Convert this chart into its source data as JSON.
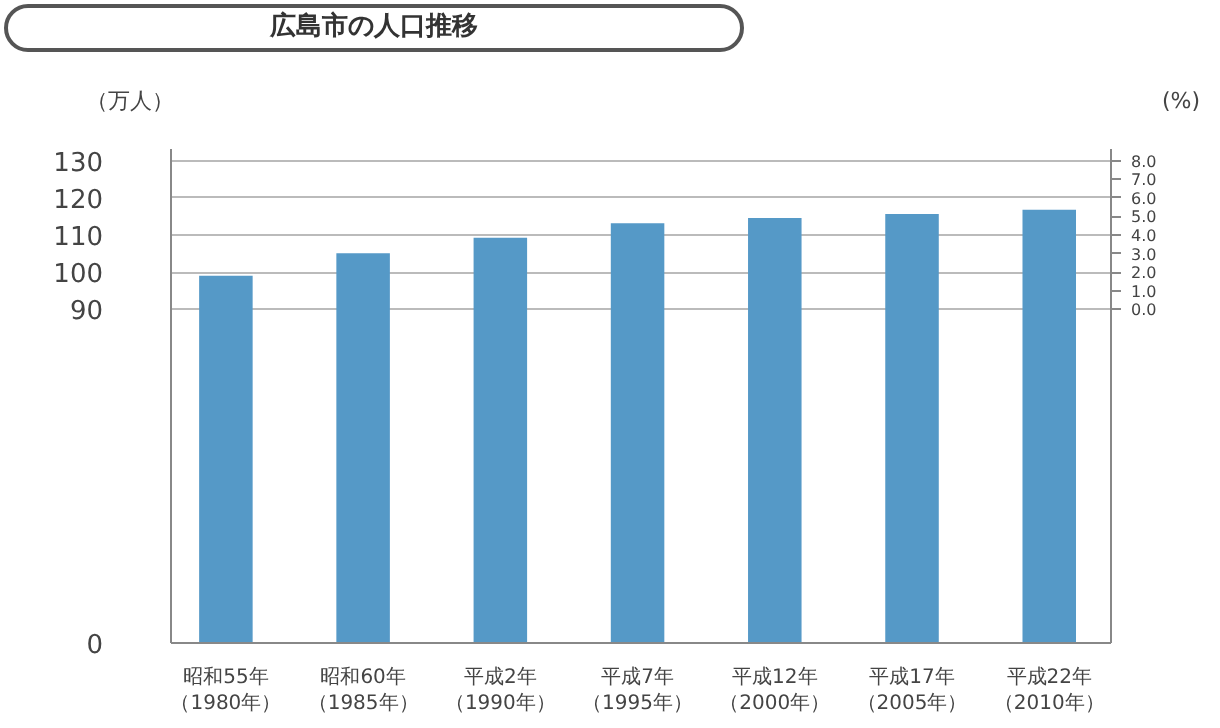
{
  "chart_data": {
    "type": "bar",
    "title": "広島市の人口推移",
    "ylabel": "（万人）",
    "y2label": "(%)",
    "categories": [
      "昭和55年（1980年）",
      "昭和60年（1985年）",
      "平成2年（1990年）",
      "平成7年（1995年）",
      "平成12年（2000年）",
      "平成17年（2005年）",
      "平成22年（2010年）"
    ],
    "values": [
      99.0,
      105.1,
      109.3,
      113.2,
      114.6,
      115.7,
      116.8
    ],
    "color": "#5599c7",
    "ylim": [
      0,
      133.2
    ],
    "yticks": [
      0,
      90,
      100,
      110,
      120,
      130
    ],
    "y2lim": [
      -18,
      8.64
    ],
    "y2ticks": [
      {
        "value": 0,
        "label": "0.0"
      },
      {
        "value": 1,
        "label": "1.0"
      },
      {
        "value": 2,
        "label": "2.0"
      },
      {
        "value": 3,
        "label": "3.0"
      },
      {
        "value": 4,
        "label": "4.0"
      },
      {
        "value": 5,
        "label": "5.0"
      },
      {
        "value": 6,
        "label": "6.0"
      },
      {
        "value": 7,
        "label": "7.0"
      },
      {
        "value": 8,
        "label": "8.0"
      }
    ],
    "grid": "y"
  }
}
